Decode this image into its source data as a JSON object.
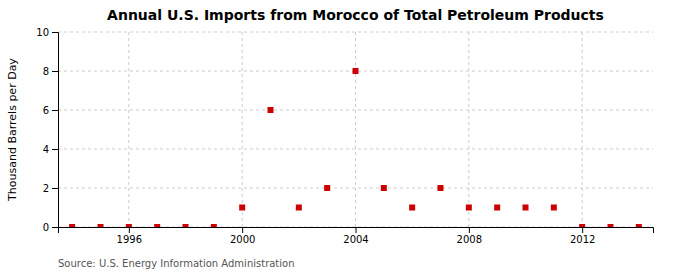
{
  "chart_data": {
    "type": "scatter",
    "title": "Annual U.S. Imports from Morocco of Total Petroleum Products",
    "ylabel": "Thousand Barrels per Day",
    "annotations": [
      "Source: U.S. Energy Information Administration"
    ],
    "x": [
      1994,
      1995,
      1996,
      1997,
      1998,
      1999,
      2000,
      2001,
      2002,
      2003,
      2004,
      2005,
      2006,
      2007,
      2008,
      2009,
      2010,
      2011,
      2012,
      2013,
      2014
    ],
    "values": [
      0,
      0,
      0,
      0,
      0,
      0,
      1,
      6,
      1,
      2,
      8,
      2,
      1,
      2,
      1,
      1,
      1,
      1,
      0,
      0,
      0
    ],
    "color": "#cc0000",
    "marker": "square",
    "xlim": [
      1993.5,
      2014.5
    ],
    "xticks": [
      1996,
      2000,
      2004,
      2008,
      2012
    ],
    "ylim": [
      0,
      10
    ],
    "yticks": [
      0,
      2,
      4,
      6,
      8,
      10
    ],
    "grid": true
  }
}
